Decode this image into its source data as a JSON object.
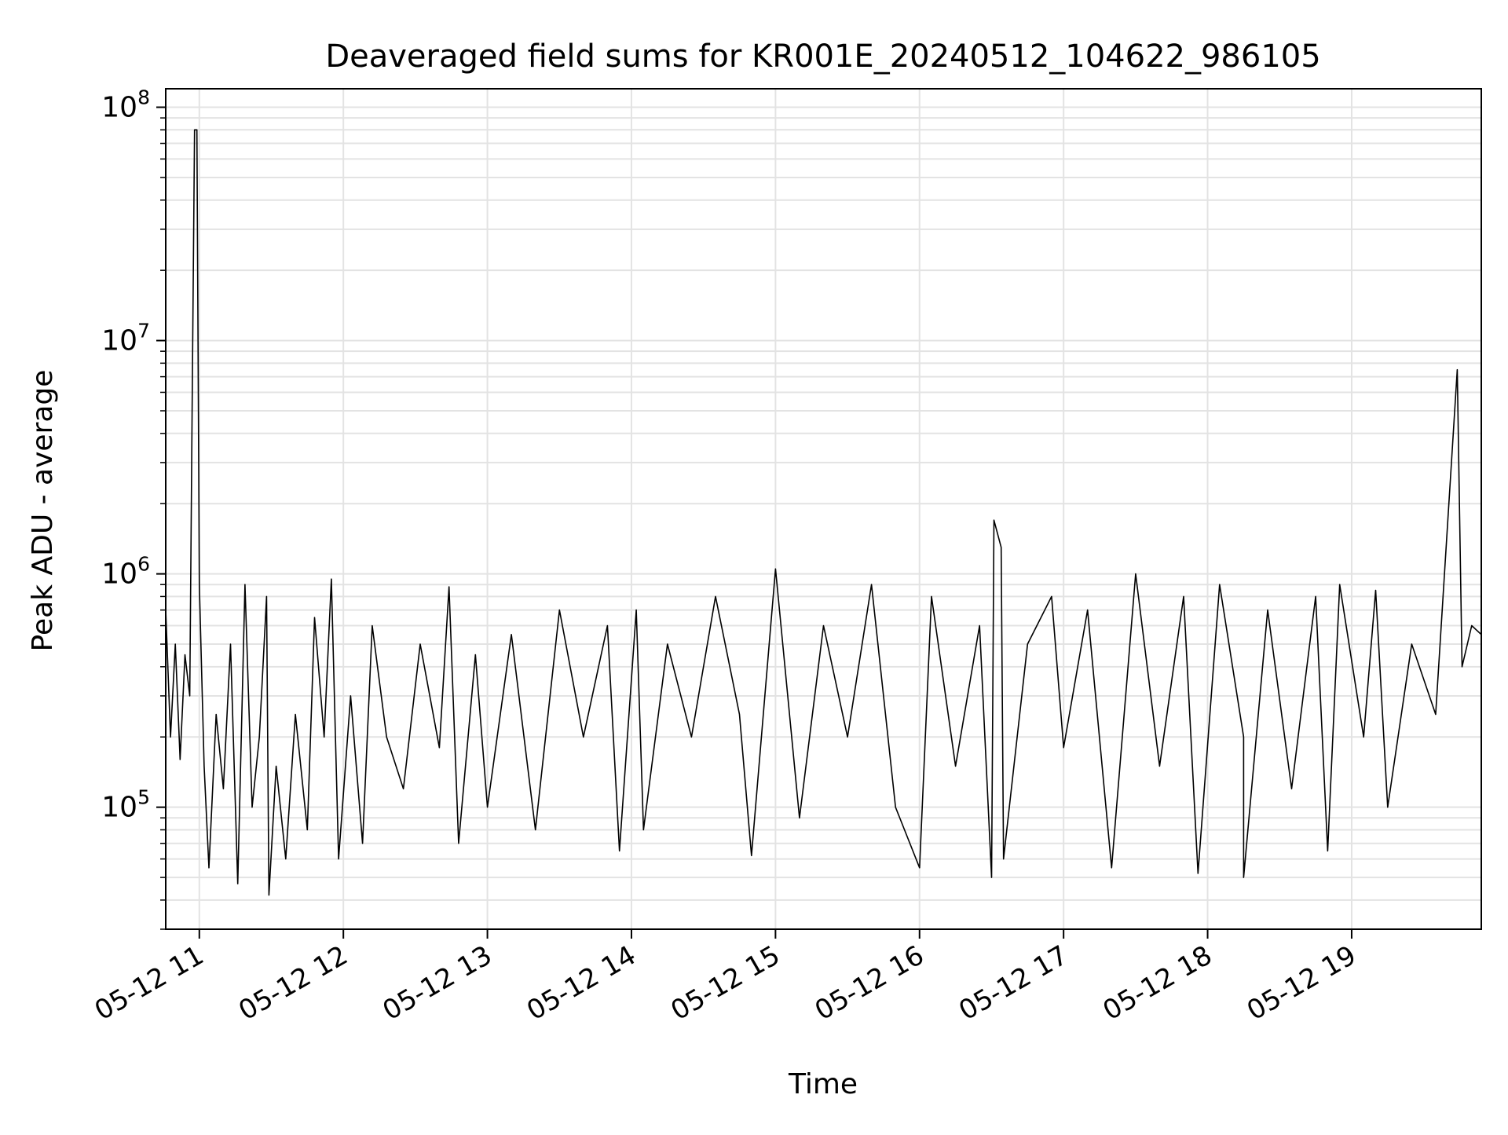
{
  "chart_data": {
    "type": "line",
    "title": "Deaveraged field sums for KR001E_20240512_104622_986105",
    "xlabel": "Time",
    "ylabel": "Peak ADU - average",
    "x_axis": {
      "kind": "time",
      "range": [
        "2024-05-12 10:46",
        "2024-05-12 19:54"
      ],
      "ticks": [
        "2024-05-12 11:00",
        "2024-05-12 12:00",
        "2024-05-12 13:00",
        "2024-05-12 14:00",
        "2024-05-12 15:00",
        "2024-05-12 16:00",
        "2024-05-12 17:00",
        "2024-05-12 18:00",
        "2024-05-12 19:00"
      ],
      "tick_labels": [
        "05-12 11",
        "05-12 12",
        "05-12 13",
        "05-12 14",
        "05-12 15",
        "05-12 16",
        "05-12 17",
        "05-12 18",
        "05-12 19"
      ]
    },
    "y_axis": {
      "scale": "log",
      "range": [
        30000,
        120000000
      ],
      "ticks": [
        100000,
        1000000,
        10000000,
        100000000
      ],
      "tick_labels": [
        {
          "base": "10",
          "exp": "5"
        },
        {
          "base": "10",
          "exp": "6"
        },
        {
          "base": "10",
          "exp": "7"
        },
        {
          "base": "10",
          "exp": "8"
        }
      ]
    },
    "grid": true,
    "line_color": "#000000",
    "series": [
      {
        "points": [
          [
            "2024-05-12 10:46",
            700000
          ],
          [
            "2024-05-12 10:48",
            200000
          ],
          [
            "2024-05-12 10:50",
            500000
          ],
          [
            "2024-05-12 10:52",
            160000
          ],
          [
            "2024-05-12 10:54",
            450000
          ],
          [
            "2024-05-12 10:56",
            300000
          ],
          [
            "2024-05-12 10:57",
            5000000
          ],
          [
            "2024-05-12 10:58",
            80000000
          ],
          [
            "2024-05-12 10:59",
            80000000
          ],
          [
            "2024-05-12 11:00",
            900000
          ],
          [
            "2024-05-12 11:02",
            150000
          ],
          [
            "2024-05-12 11:04",
            55000
          ],
          [
            "2024-05-12 11:07",
            250000
          ],
          [
            "2024-05-12 11:10",
            120000
          ],
          [
            "2024-05-12 11:13",
            500000
          ],
          [
            "2024-05-12 11:16",
            47000
          ],
          [
            "2024-05-12 11:19",
            900000
          ],
          [
            "2024-05-12 11:22",
            100000
          ],
          [
            "2024-05-12 11:25",
            200000
          ],
          [
            "2024-05-12 11:28",
            800000
          ],
          [
            "2024-05-12 11:29",
            42000
          ],
          [
            "2024-05-12 11:32",
            150000
          ],
          [
            "2024-05-12 11:36",
            60000
          ],
          [
            "2024-05-12 11:40",
            250000
          ],
          [
            "2024-05-12 11:45",
            80000
          ],
          [
            "2024-05-12 11:48",
            650000
          ],
          [
            "2024-05-12 11:52",
            200000
          ],
          [
            "2024-05-12 11:55",
            950000
          ],
          [
            "2024-05-12 11:58",
            60000
          ],
          [
            "2024-05-12 12:03",
            300000
          ],
          [
            "2024-05-12 12:08",
            70000
          ],
          [
            "2024-05-12 12:12",
            600000
          ],
          [
            "2024-05-12 12:18",
            200000
          ],
          [
            "2024-05-12 12:25",
            120000
          ],
          [
            "2024-05-12 12:32",
            500000
          ],
          [
            "2024-05-12 12:40",
            180000
          ],
          [
            "2024-05-12 12:44",
            880000
          ],
          [
            "2024-05-12 12:48",
            70000
          ],
          [
            "2024-05-12 12:55",
            450000
          ],
          [
            "2024-05-12 13:00",
            100000
          ],
          [
            "2024-05-12 13:10",
            550000
          ],
          [
            "2024-05-12 13:20",
            80000
          ],
          [
            "2024-05-12 13:30",
            700000
          ],
          [
            "2024-05-12 13:40",
            200000
          ],
          [
            "2024-05-12 13:50",
            600000
          ],
          [
            "2024-05-12 13:55",
            65000
          ],
          [
            "2024-05-12 14:02",
            700000
          ],
          [
            "2024-05-12 14:05",
            80000
          ],
          [
            "2024-05-12 14:15",
            500000
          ],
          [
            "2024-05-12 14:25",
            200000
          ],
          [
            "2024-05-12 14:35",
            800000
          ],
          [
            "2024-05-12 14:45",
            250000
          ],
          [
            "2024-05-12 14:50",
            62000
          ],
          [
            "2024-05-12 14:58",
            600000
          ],
          [
            "2024-05-12 15:00",
            1050000
          ],
          [
            "2024-05-12 15:10",
            90000
          ],
          [
            "2024-05-12 15:20",
            600000
          ],
          [
            "2024-05-12 15:30",
            200000
          ],
          [
            "2024-05-12 15:40",
            900000
          ],
          [
            "2024-05-12 15:50",
            100000
          ],
          [
            "2024-05-12 16:00",
            55000
          ],
          [
            "2024-05-12 16:05",
            800000
          ],
          [
            "2024-05-12 16:15",
            150000
          ],
          [
            "2024-05-12 16:25",
            600000
          ],
          [
            "2024-05-12 16:30",
            50000
          ],
          [
            "2024-05-12 16:31",
            1700000
          ],
          [
            "2024-05-12 16:34",
            1300000
          ],
          [
            "2024-05-12 16:35",
            60000
          ],
          [
            "2024-05-12 16:45",
            500000
          ],
          [
            "2024-05-12 16:55",
            800000
          ],
          [
            "2024-05-12 17:00",
            180000
          ],
          [
            "2024-05-12 17:10",
            700000
          ],
          [
            "2024-05-12 17:20",
            55000
          ],
          [
            "2024-05-12 17:30",
            1000000
          ],
          [
            "2024-05-12 17:40",
            150000
          ],
          [
            "2024-05-12 17:50",
            800000
          ],
          [
            "2024-05-12 17:56",
            52000
          ],
          [
            "2024-05-12 18:05",
            900000
          ],
          [
            "2024-05-12 18:15",
            200000
          ],
          [
            "2024-05-12 18:15",
            50000
          ],
          [
            "2024-05-12 18:25",
            700000
          ],
          [
            "2024-05-12 18:35",
            120000
          ],
          [
            "2024-05-12 18:45",
            800000
          ],
          [
            "2024-05-12 18:50",
            65000
          ],
          [
            "2024-05-12 18:55",
            900000
          ],
          [
            "2024-05-12 19:05",
            200000
          ],
          [
            "2024-05-12 19:10",
            850000
          ],
          [
            "2024-05-12 19:15",
            100000
          ],
          [
            "2024-05-12 19:25",
            500000
          ],
          [
            "2024-05-12 19:35",
            250000
          ],
          [
            "2024-05-12 19:44",
            7500000
          ],
          [
            "2024-05-12 19:46",
            400000
          ],
          [
            "2024-05-12 19:50",
            600000
          ],
          [
            "2024-05-12 19:54",
            550000
          ]
        ]
      }
    ]
  }
}
